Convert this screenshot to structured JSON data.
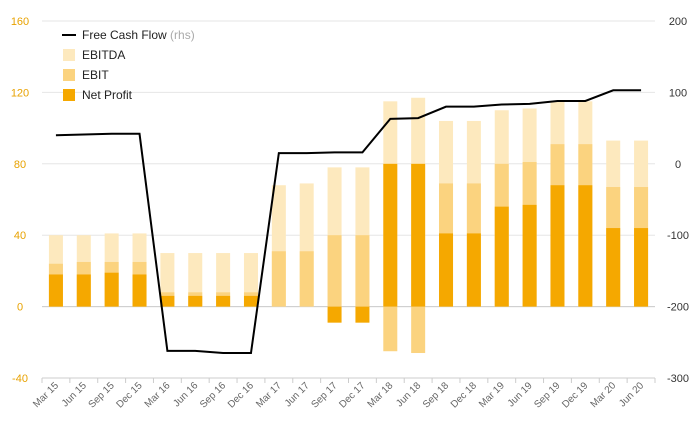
{
  "chart_data": {
    "type": "bar",
    "categories": [
      "Mar 15",
      "Jun 15",
      "Sep 15",
      "Dec 15",
      "Mar 16",
      "Jun 16",
      "Sep 16",
      "Dec 16",
      "Mar 17",
      "Jun 17",
      "Sep 17",
      "Dec 17",
      "Mar 18",
      "Jun 18",
      "Sep 18",
      "Dec 18",
      "Mar 19",
      "Jun 19",
      "Sep 19",
      "Dec 19",
      "Mar 20",
      "Jun 20"
    ],
    "series": [
      {
        "name": "EBITDA",
        "kind": "bar",
        "axis": "left",
        "color": "#fde9be",
        "values": [
          40,
          40,
          41,
          41,
          30,
          30,
          30,
          30,
          68,
          69,
          78,
          78,
          115,
          117,
          104,
          104,
          110,
          111,
          115,
          115,
          93,
          93
        ]
      },
      {
        "name": "EBIT",
        "kind": "bar",
        "axis": "left",
        "color": "#fbd37f",
        "values": [
          24,
          25,
          25,
          25,
          8,
          8,
          8,
          8,
          31,
          31,
          40,
          40,
          -25,
          -26,
          69,
          69,
          80,
          81,
          91,
          91,
          67,
          67
        ]
      },
      {
        "name": "Net Profit",
        "kind": "bar",
        "axis": "left",
        "color": "#f5a800",
        "values": [
          18,
          18,
          19,
          18,
          6,
          6,
          6,
          6,
          0,
          0,
          -9,
          -9,
          80,
          80,
          41,
          41,
          56,
          57,
          68,
          68,
          44,
          44
        ]
      },
      {
        "name": "Free Cash Flow",
        "kind": "line",
        "axis": "right",
        "color": "#000000",
        "values": [
          40,
          41,
          42,
          42,
          -262,
          -262,
          -265,
          -265,
          15,
          15,
          16,
          16,
          63,
          64,
          80,
          80,
          83,
          84,
          88,
          88,
          103,
          103
        ]
      }
    ],
    "legend": [
      {
        "label": "Free Cash Flow",
        "note": "(rhs)",
        "marker": "line",
        "color": "#000000"
      },
      {
        "label": "EBITDA",
        "note": "",
        "marker": "box",
        "color": "#fde9be"
      },
      {
        "label": "EBIT",
        "note": "",
        "marker": "box",
        "color": "#fbd37f"
      },
      {
        "label": "Net Profit",
        "note": "",
        "marker": "box",
        "color": "#f5a800"
      }
    ],
    "legend_position": "top-left",
    "y_left": {
      "min": -40,
      "max": 160,
      "ticks": [
        -40,
        0,
        40,
        80,
        120,
        160
      ],
      "color": "#e8a200"
    },
    "y_right": {
      "min": -300,
      "max": 200,
      "ticks": [
        -300,
        -200,
        -100,
        0,
        100,
        200
      ],
      "color": "#333333"
    },
    "grid": true,
    "title": "",
    "xlabel": "",
    "ylabel": ""
  }
}
